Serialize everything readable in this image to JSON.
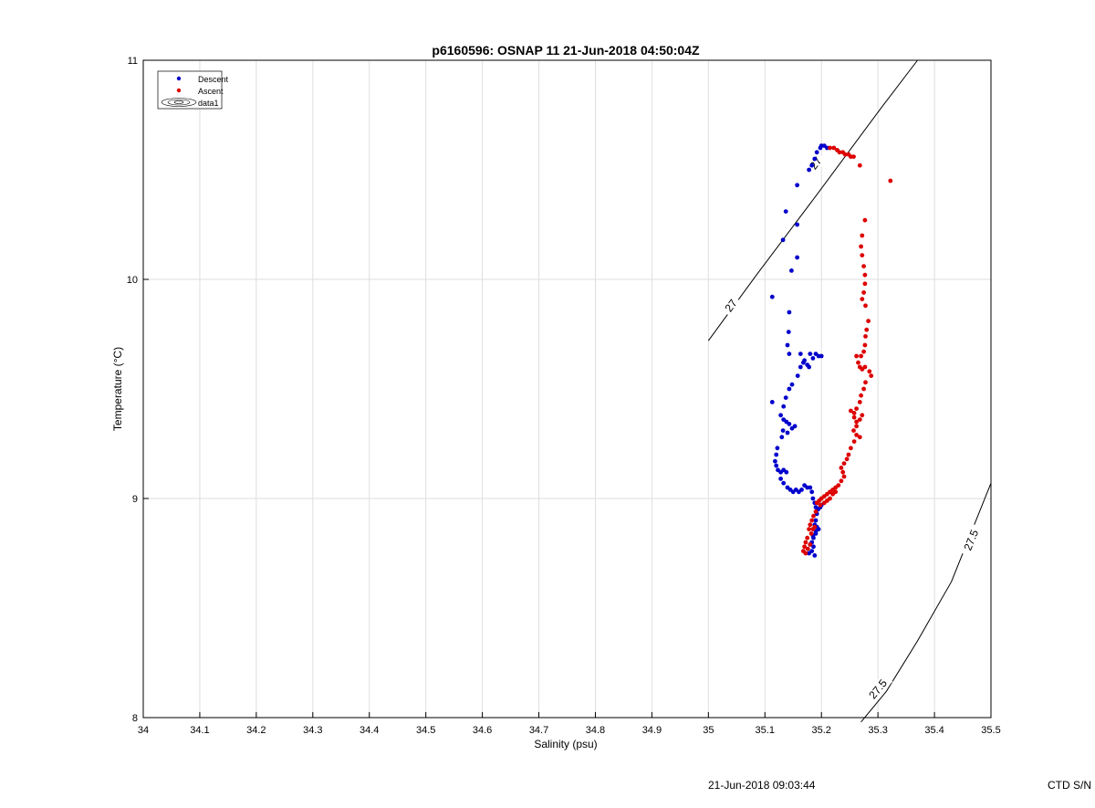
{
  "chart_data": {
    "type": "scatter",
    "title": "p6160596: OSNAP 11 21-Jun-2018 04:50:04Z",
    "xlabel": "Salinity (psu)",
    "ylabel": "Temperature (°C)",
    "xlim": [
      34,
      35.5
    ],
    "ylim": [
      8,
      11
    ],
    "x_ticks": [
      "34",
      "34.1",
      "34.2",
      "34.3",
      "34.4",
      "34.5",
      "34.6",
      "34.7",
      "34.8",
      "34.9",
      "35",
      "35.1",
      "35.2",
      "35.3",
      "35.4",
      "35.5"
    ],
    "y_ticks": [
      "8",
      "9",
      "10",
      "11"
    ],
    "grid": true,
    "legend_position": "top-left",
    "legend": [
      "Descent",
      "Ascent",
      "data1"
    ],
    "colors": {
      "descent": "#0000cc",
      "ascent": "#dd0000",
      "contour": "#000000"
    },
    "contours": [
      {
        "label": "27",
        "points": [
          [
            35.0,
            9.72
          ],
          [
            35.085,
            10.02
          ],
          [
            35.19,
            10.38
          ],
          [
            35.305,
            10.78
          ],
          [
            35.37,
            11.0
          ]
        ],
        "label_positions": [
          [
            35.04,
            9.88
          ],
          [
            35.19,
            10.53
          ]
        ]
      },
      {
        "label": "27.5",
        "points": [
          [
            35.27,
            7.98
          ],
          [
            35.315,
            8.12
          ],
          [
            35.37,
            8.35
          ],
          [
            35.43,
            8.62
          ],
          [
            35.5,
            9.07
          ]
        ],
        "label_positions": [
          [
            35.3,
            8.13
          ],
          [
            35.465,
            8.81
          ]
        ]
      }
    ],
    "series": [
      {
        "name": "Descent",
        "points": [
          [
            35.2,
            10.61
          ],
          [
            35.205,
            10.61
          ],
          [
            35.21,
            10.6
          ],
          [
            35.198,
            10.6
          ],
          [
            35.192,
            10.58
          ],
          [
            35.188,
            10.55
          ],
          [
            35.183,
            10.52
          ],
          [
            35.178,
            10.5
          ],
          [
            35.157,
            10.43
          ],
          [
            35.137,
            10.31
          ],
          [
            35.157,
            10.25
          ],
          [
            35.132,
            10.18
          ],
          [
            35.157,
            10.1
          ],
          [
            35.147,
            10.04
          ],
          [
            35.113,
            9.92
          ],
          [
            35.143,
            9.85
          ],
          [
            35.142,
            9.76
          ],
          [
            35.14,
            9.7
          ],
          [
            35.143,
            9.66
          ],
          [
            35.163,
            9.66
          ],
          [
            35.17,
            9.63
          ],
          [
            35.175,
            9.61
          ],
          [
            35.18,
            9.66
          ],
          [
            35.185,
            9.64
          ],
          [
            35.19,
            9.66
          ],
          [
            35.195,
            9.65
          ],
          [
            35.2,
            9.65
          ],
          [
            35.178,
            9.6
          ],
          [
            35.168,
            9.62
          ],
          [
            35.163,
            9.6
          ],
          [
            35.158,
            9.56
          ],
          [
            35.148,
            9.52
          ],
          [
            35.143,
            9.5
          ],
          [
            35.137,
            9.46
          ],
          [
            35.133,
            9.42
          ],
          [
            35.113,
            9.44
          ],
          [
            35.128,
            9.38
          ],
          [
            35.133,
            9.36
          ],
          [
            35.138,
            9.35
          ],
          [
            35.143,
            9.34
          ],
          [
            35.148,
            9.32
          ],
          [
            35.153,
            9.33
          ],
          [
            35.132,
            9.31
          ],
          [
            35.14,
            9.3
          ],
          [
            35.13,
            9.28
          ],
          [
            35.122,
            9.23
          ],
          [
            35.12,
            9.2
          ],
          [
            35.118,
            9.17
          ],
          [
            35.12,
            9.15
          ],
          [
            35.123,
            9.13
          ],
          [
            35.128,
            9.12
          ],
          [
            35.133,
            9.13
          ],
          [
            35.138,
            9.12
          ],
          [
            35.128,
            9.09
          ],
          [
            35.133,
            9.07
          ],
          [
            35.14,
            9.05
          ],
          [
            35.145,
            9.04
          ],
          [
            35.15,
            9.03
          ],
          [
            35.155,
            9.04
          ],
          [
            35.16,
            9.03
          ],
          [
            35.165,
            9.04
          ],
          [
            35.17,
            9.06
          ],
          [
            35.175,
            9.05
          ],
          [
            35.18,
            9.05
          ],
          [
            35.183,
            9.03
          ],
          [
            35.185,
            9.0
          ],
          [
            35.188,
            8.98
          ],
          [
            35.19,
            8.96
          ],
          [
            35.194,
            8.95
          ],
          [
            35.198,
            8.96
          ],
          [
            35.2,
            8.97
          ],
          [
            35.192,
            8.93
          ],
          [
            35.19,
            8.9
          ],
          [
            35.188,
            8.88
          ],
          [
            35.192,
            8.87
          ],
          [
            35.195,
            8.86
          ],
          [
            35.19,
            8.85
          ],
          [
            35.185,
            8.83
          ],
          [
            35.183,
            8.8
          ],
          [
            35.186,
            8.78
          ],
          [
            35.183,
            8.76
          ],
          [
            35.188,
            8.74
          ],
          [
            35.178,
            8.75
          ],
          [
            35.18,
            8.79
          ],
          [
            35.186,
            8.82
          ],
          [
            35.19,
            8.84
          ]
        ]
      },
      {
        "name": "Ascent",
        "points": [
          [
            35.215,
            10.6
          ],
          [
            35.222,
            10.6
          ],
          [
            35.228,
            10.59
          ],
          [
            35.232,
            10.58
          ],
          [
            35.238,
            10.58
          ],
          [
            35.242,
            10.57
          ],
          [
            35.248,
            10.57
          ],
          [
            35.252,
            10.56
          ],
          [
            35.257,
            10.56
          ],
          [
            35.268,
            10.52
          ],
          [
            35.322,
            10.45
          ],
          [
            35.277,
            10.27
          ],
          [
            35.272,
            10.2
          ],
          [
            35.27,
            10.15
          ],
          [
            35.272,
            10.11
          ],
          [
            35.275,
            10.06
          ],
          [
            35.277,
            10.02
          ],
          [
            35.277,
            9.98
          ],
          [
            35.275,
            9.94
          ],
          [
            35.272,
            9.91
          ],
          [
            35.278,
            9.88
          ],
          [
            35.283,
            9.81
          ],
          [
            35.28,
            9.77
          ],
          [
            35.278,
            9.74
          ],
          [
            35.277,
            9.7
          ],
          [
            35.275,
            9.67
          ],
          [
            35.27,
            9.65
          ],
          [
            35.262,
            9.65
          ],
          [
            35.265,
            9.62
          ],
          [
            35.268,
            9.6
          ],
          [
            35.272,
            9.59
          ],
          [
            35.277,
            9.6
          ],
          [
            35.285,
            9.58
          ],
          [
            35.288,
            9.56
          ],
          [
            35.278,
            9.53
          ],
          [
            35.275,
            9.5
          ],
          [
            35.27,
            9.47
          ],
          [
            35.268,
            9.44
          ],
          [
            35.262,
            9.41
          ],
          [
            35.258,
            9.39
          ],
          [
            35.252,
            9.4
          ],
          [
            35.258,
            9.37
          ],
          [
            35.262,
            9.35
          ],
          [
            35.268,
            9.36
          ],
          [
            35.272,
            9.38
          ],
          [
            35.262,
            9.33
          ],
          [
            35.257,
            9.31
          ],
          [
            35.262,
            9.29
          ],
          [
            35.268,
            9.28
          ],
          [
            35.258,
            9.26
          ],
          [
            35.252,
            9.23
          ],
          [
            35.248,
            9.2
          ],
          [
            35.245,
            9.18
          ],
          [
            35.24,
            9.16
          ],
          [
            35.235,
            9.14
          ],
          [
            35.238,
            9.12
          ],
          [
            35.24,
            9.1
          ],
          [
            35.235,
            9.08
          ],
          [
            35.23,
            9.06
          ],
          [
            35.225,
            9.05
          ],
          [
            35.22,
            9.04
          ],
          [
            35.215,
            9.03
          ],
          [
            35.21,
            9.02
          ],
          [
            35.205,
            9.01
          ],
          [
            35.2,
            9.0
          ],
          [
            35.196,
            8.99
          ],
          [
            35.192,
            8.98
          ],
          [
            35.198,
            8.97
          ],
          [
            35.205,
            8.98
          ],
          [
            35.21,
            8.99
          ],
          [
            35.215,
            9.0
          ],
          [
            35.22,
            9.02
          ],
          [
            35.225,
            9.03
          ],
          [
            35.19,
            8.94
          ],
          [
            35.186,
            8.92
          ],
          [
            35.183,
            8.9
          ],
          [
            35.18,
            8.88
          ],
          [
            35.178,
            8.86
          ],
          [
            35.182,
            8.84
          ],
          [
            35.185,
            8.86
          ],
          [
            35.188,
            8.87
          ],
          [
            35.175,
            8.82
          ],
          [
            35.172,
            8.8
          ],
          [
            35.17,
            8.78
          ],
          [
            35.168,
            8.76
          ],
          [
            35.172,
            8.75
          ],
          [
            35.176,
            8.77
          ],
          [
            35.18,
            8.79
          ]
        ]
      }
    ]
  },
  "footer": {
    "timestamp": "21-Jun-2018 09:03:44",
    "ctd_label": "CTD S/N"
  }
}
